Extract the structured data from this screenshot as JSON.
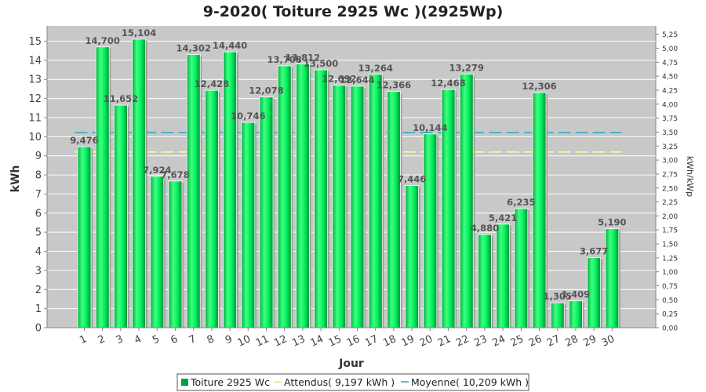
{
  "chart_data": {
    "type": "bar",
    "title": "9-2020( Toiture 2925 Wc )(2925Wp)",
    "xlabel": "Jour",
    "ylabel": "kWh",
    "ylabel_right": "kWh/kWp",
    "categories": [
      "1",
      "2",
      "3",
      "4",
      "5",
      "6",
      "7",
      "8",
      "9",
      "10",
      "11",
      "12",
      "13",
      "14",
      "15",
      "16",
      "17",
      "18",
      "19",
      "20",
      "21",
      "22",
      "23",
      "24",
      "25",
      "26",
      "27",
      "28",
      "29",
      "30"
    ],
    "values": [
      9.476,
      14.7,
      11.652,
      15.104,
      7.924,
      7.678,
      14.302,
      12.428,
      14.44,
      10.746,
      12.078,
      13.708,
      13.812,
      13.5,
      12.692,
      12.644,
      13.264,
      12.366,
      7.446,
      10.144,
      12.468,
      13.279,
      4.88,
      5.421,
      6.235,
      12.306,
      1.305,
      1.409,
      3.677,
      5.19
    ],
    "value_labels": [
      "9,476",
      "14,700",
      "11,652",
      "15,104",
      "7,924",
      "7,678",
      "14,302",
      "12,428",
      "14,440",
      "10,746",
      "12,078",
      "13,708",
      "13,812",
      "13,500",
      "12,692",
      "12,644",
      "13,264",
      "12,366",
      "7,446",
      "10,144",
      "12,468",
      "13,279",
      "4,880",
      "5,421",
      "6,235",
      "12,306",
      "1,305",
      "1,409",
      "3,677",
      "5,190"
    ],
    "ylim": [
      0,
      15.8
    ],
    "yticks": [
      0,
      1,
      2,
      3,
      4,
      5,
      6,
      7,
      8,
      9,
      10,
      11,
      12,
      13,
      14,
      15
    ],
    "ylim_right": [
      0,
      5.4
    ],
    "yticks_right": [
      "0,00",
      "0,25",
      "0,50",
      "0,75",
      "1,00",
      "1,25",
      "1,50",
      "1,75",
      "2,00",
      "2,25",
      "2,50",
      "2,75",
      "3,00",
      "3,25",
      "3,50",
      "3,75",
      "4,00",
      "4,25",
      "4,50",
      "4,75",
      "5,00",
      "5,25"
    ],
    "reference_lines": [
      {
        "name": "Attendus( 9,197 kWh )",
        "value": 9.197,
        "color": "#ffff80"
      },
      {
        "name": "Moyenne( 10,209 kWh )",
        "value": 10.209,
        "color": "#28a8c8"
      }
    ],
    "series_name": "Toiture 2925 Wc",
    "bar_color": "#00e050",
    "grid": true,
    "legend_position": "bottom"
  },
  "legend": {
    "items": [
      {
        "label": "Toiture 2925 Wc",
        "color": "#00a040"
      },
      {
        "label": "Attendus( 9,197 kWh )",
        "color": "#ffff80"
      },
      {
        "label": "Moyenne( 10,209 kWh )",
        "color": "#28a8c8"
      }
    ]
  }
}
